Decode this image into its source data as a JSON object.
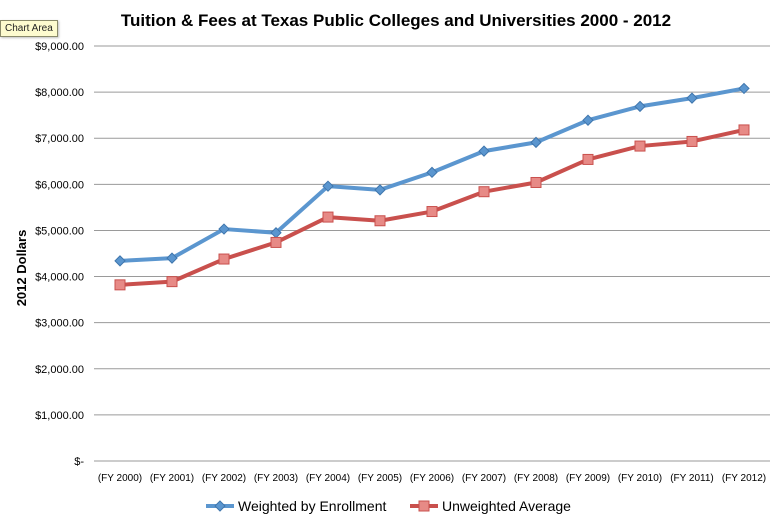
{
  "tooltip": "Chart Area",
  "chart_data": {
    "type": "line",
    "title": "Tuition & Fees at Texas Public Colleges and Universities 2000 - 2012",
    "xlabel": "",
    "ylabel": "2012 Dollars",
    "categories": [
      "(FY 2000)",
      "(FY 2001)",
      "(FY 2002)",
      "(FY 2003)",
      "(FY 2004)",
      "(FY 2005)",
      "(FY 2006)",
      "(FY 2007)",
      "(FY 2008)",
      "(FY 2009)",
      "(FY 2010)",
      "(FY 2011)",
      "(FY 2012)"
    ],
    "ylim": [
      0,
      9000
    ],
    "yticks": [
      0,
      1000,
      2000,
      3000,
      4000,
      5000,
      6000,
      7000,
      8000,
      9000
    ],
    "ytick_labels": [
      "$-",
      "$1,000.00",
      "$2,000.00",
      "$3,000.00",
      "$4,000.00",
      "$5,000.00",
      "$6,000.00",
      "$7,000.00",
      "$8,000.00",
      "$9,000.00"
    ],
    "grid": true,
    "legend_position": "bottom",
    "series": [
      {
        "name": "Weighted by Enrollment",
        "color": "#5b96cf",
        "marker": "diamond",
        "values": [
          4340,
          4400,
          5030,
          4950,
          5960,
          5880,
          6260,
          6720,
          6910,
          7390,
          7690,
          7870,
          8080
        ]
      },
      {
        "name": "Unweighted Average",
        "color": "#c9504d",
        "marker_fill": "#e78a86",
        "marker": "square",
        "values": [
          3820,
          3890,
          4380,
          4740,
          5290,
          5210,
          5410,
          5840,
          6040,
          6540,
          6830,
          6930,
          7180
        ]
      }
    ]
  }
}
